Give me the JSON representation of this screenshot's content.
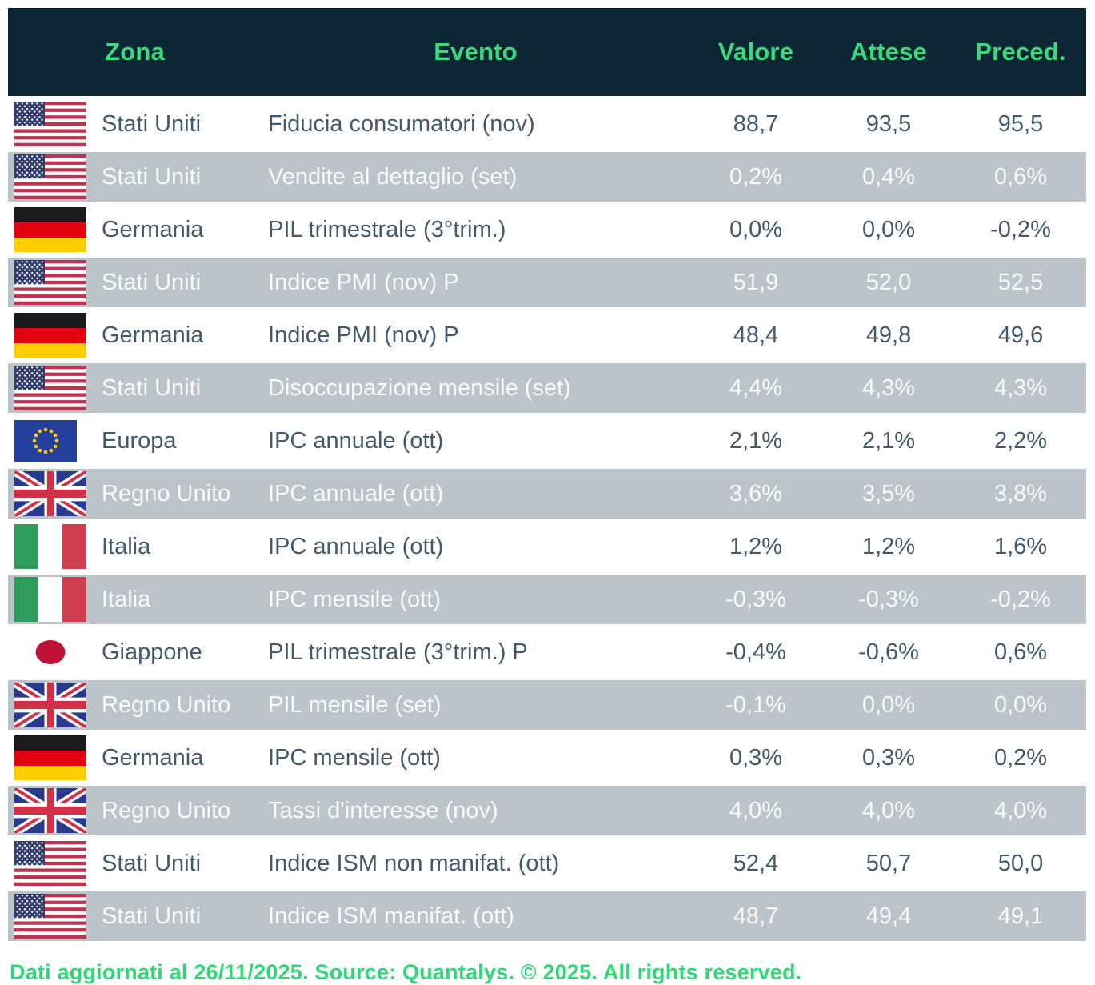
{
  "header": {
    "zona": "Zona",
    "evento": "Evento",
    "valore": "Valore",
    "attese": "Attese",
    "preced": "Preced."
  },
  "rows": [
    {
      "flag": "us",
      "zone": "Stati Uniti",
      "event": "Fiducia consumatori (nov)",
      "valore": "88,7",
      "attese": "93,5",
      "preced": "95,5"
    },
    {
      "flag": "us",
      "zone": "Stati Uniti",
      "event": "Vendite al dettaglio (set)",
      "valore": "0,2%",
      "attese": "0,4%",
      "preced": "0,6%"
    },
    {
      "flag": "de",
      "zone": "Germania",
      "event": "PIL trimestrale (3°trim.)",
      "valore": "0,0%",
      "attese": "0,0%",
      "preced": "-0,2%"
    },
    {
      "flag": "us",
      "zone": "Stati Uniti",
      "event": "Indice PMI (nov) P",
      "valore": "51,9",
      "attese": "52,0",
      "preced": "52,5"
    },
    {
      "flag": "de",
      "zone": "Germania",
      "event": "Indice PMI (nov) P",
      "valore": "48,4",
      "attese": "49,8",
      "preced": "49,6"
    },
    {
      "flag": "us",
      "zone": "Stati Uniti",
      "event": "Disoccupazione mensile (set)",
      "valore": "4,4%",
      "attese": "4,3%",
      "preced": "4,3%"
    },
    {
      "flag": "eu",
      "zone": "Europa",
      "event": "IPC annuale (ott)",
      "valore": "2,1%",
      "attese": "2,1%",
      "preced": "2,2%"
    },
    {
      "flag": "uk",
      "zone": "Regno Unito",
      "event": "IPC annuale (ott)",
      "valore": "3,6%",
      "attese": "3,5%",
      "preced": "3,8%"
    },
    {
      "flag": "it",
      "zone": "Italia",
      "event": "IPC annuale (ott)",
      "valore": "1,2%",
      "attese": "1,2%",
      "preced": "1,6%"
    },
    {
      "flag": "it",
      "zone": "Italia",
      "event": "IPC mensile (ott)",
      "valore": "-0,3%",
      "attese": "-0,3%",
      "preced": "-0,2%"
    },
    {
      "flag": "jp",
      "zone": "Giappone",
      "event": "PIL trimestrale (3°trim.) P",
      "valore": "-0,4%",
      "attese": "-0,6%",
      "preced": "0,6%"
    },
    {
      "flag": "uk",
      "zone": "Regno Unito",
      "event": "PIL mensile (set)",
      "valore": "-0,1%",
      "attese": "0,0%",
      "preced": "0,0%"
    },
    {
      "flag": "de",
      "zone": "Germania",
      "event": "IPC mensile (ott)",
      "valore": "0,3%",
      "attese": "0,3%",
      "preced": "0,2%"
    },
    {
      "flag": "uk",
      "zone": "Regno Unito",
      "event": "Tassi d'interesse (nov)",
      "valore": "4,0%",
      "attese": "4,0%",
      "preced": "4,0%"
    },
    {
      "flag": "us",
      "zone": "Stati Uniti",
      "event": "Indice ISM non manifat. (ott)",
      "valore": "52,4",
      "attese": "50,7",
      "preced": "50,0"
    },
    {
      "flag": "us",
      "zone": "Stati Uniti",
      "event": "Indice ISM manifat. (ott)",
      "valore": "48,7",
      "attese": "49,4",
      "preced": "49,1"
    }
  ],
  "footer": {
    "text": "Dati aggiornati al 26/11/2025. Source: Quantalys. © 2025. All rights reserved."
  },
  "colors": {
    "header_bg": "#0d2634",
    "accent_green": "#38db7d",
    "row_alt_gray": "#bcc3c9",
    "text_dark": "#44596b"
  }
}
